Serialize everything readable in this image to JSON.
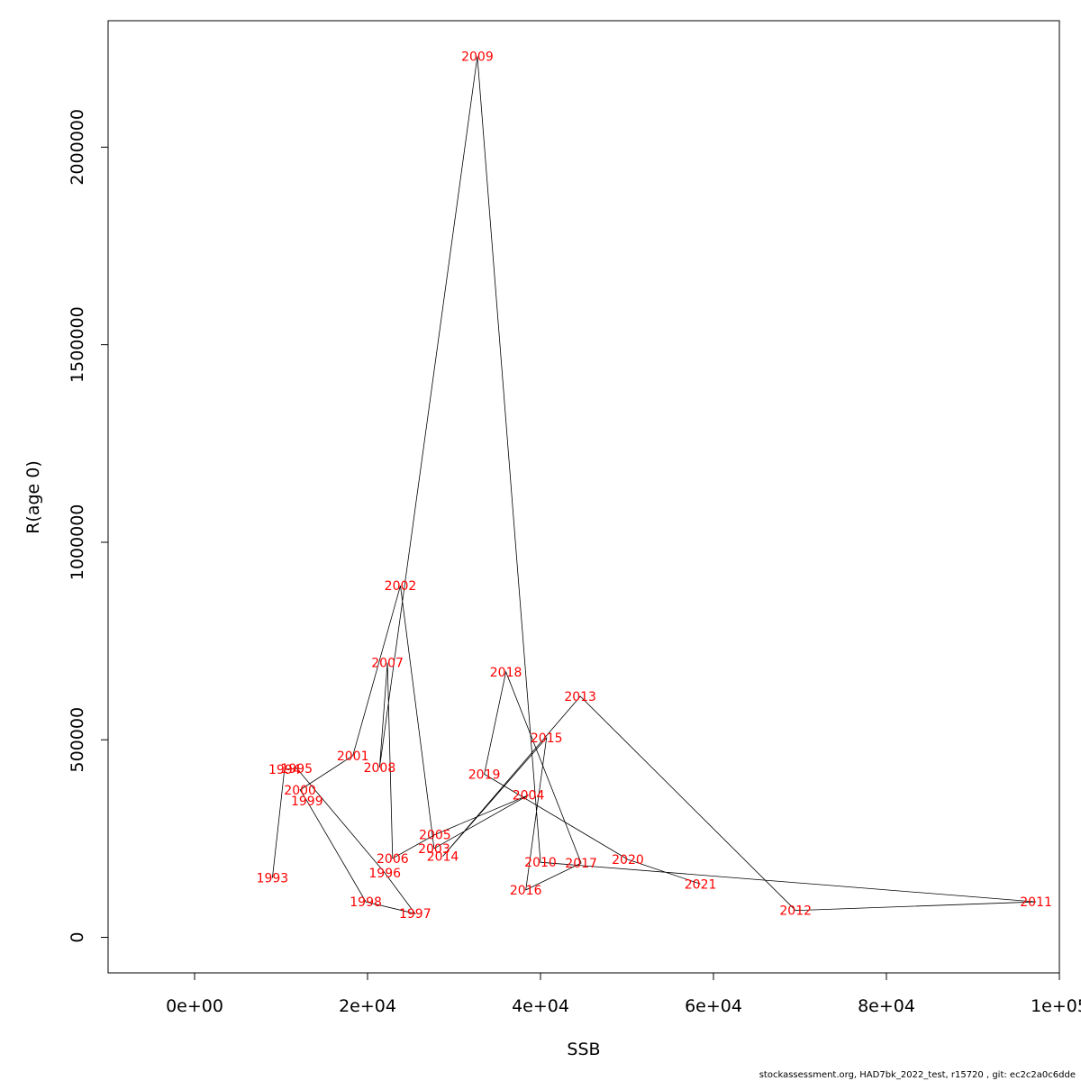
{
  "chart_data": {
    "type": "line",
    "xlabel": "SSB",
    "ylabel": "R(age 0)",
    "xlim": [
      -10000,
      100000
    ],
    "ylim": [
      -90000,
      2320000
    ],
    "x_ticks": [
      0,
      20000,
      40000,
      60000,
      80000,
      100000
    ],
    "x_tick_labels": [
      "0e+00",
      "2e+04",
      "4e+04",
      "6e+04",
      "8e+04",
      "1e+05"
    ],
    "y_ticks": [
      0,
      500000,
      1000000,
      1500000,
      2000000
    ],
    "y_tick_labels": [
      "0",
      "500000",
      "1000000",
      "1500000",
      "2000000"
    ],
    "label_color": "#ff0000",
    "line_color": "#000000",
    "points": [
      {
        "year": "1993",
        "x": 9000,
        "y": 150000
      },
      {
        "year": "1994",
        "x": 10400,
        "y": 425000
      },
      {
        "year": "1995",
        "x": 11800,
        "y": 428000
      },
      {
        "year": "1996",
        "x": 22000,
        "y": 163000
      },
      {
        "year": "1997",
        "x": 25500,
        "y": 60000
      },
      {
        "year": "1998",
        "x": 19800,
        "y": 90000
      },
      {
        "year": "1999",
        "x": 13000,
        "y": 345000
      },
      {
        "year": "2000",
        "x": 12200,
        "y": 373000
      },
      {
        "year": "2001",
        "x": 18300,
        "y": 460000
      },
      {
        "year": "2002",
        "x": 23800,
        "y": 890000
      },
      {
        "year": "2003",
        "x": 27700,
        "y": 225000
      },
      {
        "year": "2004",
        "x": 38600,
        "y": 360000
      },
      {
        "year": "2005",
        "x": 27800,
        "y": 260000
      },
      {
        "year": "2006",
        "x": 22900,
        "y": 200000
      },
      {
        "year": "2007",
        "x": 22300,
        "y": 695000
      },
      {
        "year": "2008",
        "x": 21400,
        "y": 430000
      },
      {
        "year": "2009",
        "x": 32700,
        "y": 2230000
      },
      {
        "year": "2010",
        "x": 40000,
        "y": 190000
      },
      {
        "year": "2011",
        "x": 97300,
        "y": 90000
      },
      {
        "year": "2012",
        "x": 69500,
        "y": 68000
      },
      {
        "year": "2013",
        "x": 44600,
        "y": 610000
      },
      {
        "year": "2014",
        "x": 28700,
        "y": 205000
      },
      {
        "year": "2015",
        "x": 40700,
        "y": 505000
      },
      {
        "year": "2016",
        "x": 38300,
        "y": 120000
      },
      {
        "year": "2017",
        "x": 44700,
        "y": 188000
      },
      {
        "year": "2018",
        "x": 36000,
        "y": 672000
      },
      {
        "year": "2019",
        "x": 33500,
        "y": 413000
      },
      {
        "year": "2020",
        "x": 50100,
        "y": 197000
      },
      {
        "year": "2021",
        "x": 58500,
        "y": 135000
      }
    ]
  },
  "footer": "stockassessment.org, HAD7bk_2022_test, r15720 , git: ec2c2a0c6dde"
}
